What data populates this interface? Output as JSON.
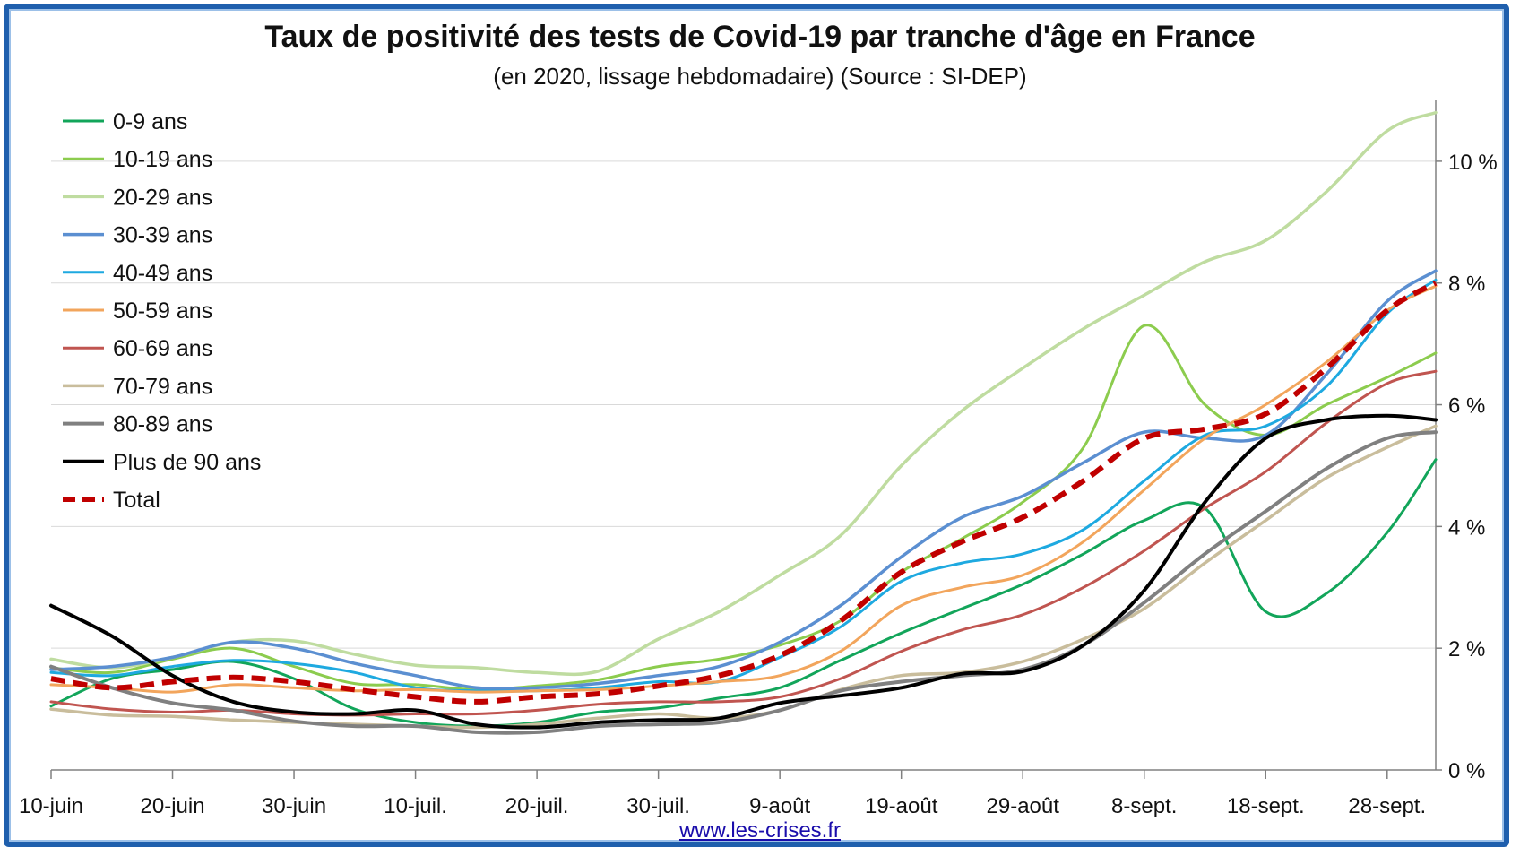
{
  "chart_data": {
    "type": "line",
    "title": "Taux de positivité des tests de Covid-19 par tranche d'âge en France",
    "subtitle": "(en 2020, lissage hebdomadaire) (Source : SI-DEP)",
    "xlabel": "",
    "ylabel": "",
    "x_ticks": [
      "10-juin",
      "20-juin",
      "30-juin",
      "10-juil.",
      "20-juil.",
      "30-juil.",
      "9-août",
      "19-août",
      "29-août",
      "8-sept.",
      "18-sept.",
      "28-sept."
    ],
    "y_ticks": [
      "0 %",
      "2 %",
      "4 %",
      "6 %",
      "8 %",
      "10 %"
    ],
    "ylim": [
      0,
      11
    ],
    "xlim": [
      0,
      114
    ],
    "grid": true,
    "legend_position": "top-left",
    "x_days": [
      0,
      5,
      10,
      15,
      20,
      25,
      30,
      35,
      40,
      45,
      50,
      55,
      60,
      65,
      70,
      75,
      80,
      85,
      90,
      95,
      100,
      105,
      110,
      114
    ],
    "series": [
      {
        "name": "0-9 ans",
        "color": "#12a55a",
        "dash": false,
        "width": 3,
        "values": [
          1.05,
          1.5,
          1.65,
          1.78,
          1.5,
          1.0,
          0.78,
          0.72,
          0.78,
          0.95,
          1.02,
          1.18,
          1.35,
          1.8,
          2.25,
          2.65,
          3.05,
          3.55,
          4.1,
          4.3,
          2.6,
          2.9,
          3.9,
          5.1
        ]
      },
      {
        "name": "10-19 ans",
        "color": "#8ccc4e",
        "dash": false,
        "width": 3,
        "values": [
          1.68,
          1.6,
          1.82,
          2.0,
          1.7,
          1.42,
          1.4,
          1.32,
          1.38,
          1.48,
          1.7,
          1.82,
          2.05,
          2.45,
          3.25,
          3.8,
          4.4,
          5.3,
          7.3,
          6.0,
          5.5,
          6.0,
          6.45,
          6.85
        ]
      },
      {
        "name": "20-29 ans",
        "color": "#bfdca0",
        "dash": false,
        "width": 3.5,
        "values": [
          1.82,
          1.68,
          1.85,
          2.1,
          2.12,
          1.9,
          1.72,
          1.68,
          1.6,
          1.62,
          2.15,
          2.6,
          3.2,
          3.85,
          5.0,
          5.9,
          6.6,
          7.25,
          7.8,
          8.35,
          8.7,
          9.5,
          10.5,
          10.8
        ]
      },
      {
        "name": "30-39 ans",
        "color": "#5b8fd1",
        "dash": false,
        "width": 3.5,
        "values": [
          1.65,
          1.7,
          1.85,
          2.1,
          2.0,
          1.75,
          1.55,
          1.35,
          1.35,
          1.42,
          1.55,
          1.7,
          2.1,
          2.7,
          3.5,
          4.15,
          4.5,
          5.05,
          5.55,
          5.45,
          5.5,
          6.5,
          7.7,
          8.2
        ]
      },
      {
        "name": "40-49 ans",
        "color": "#1ea9e0",
        "dash": false,
        "width": 3,
        "values": [
          1.6,
          1.55,
          1.7,
          1.8,
          1.75,
          1.6,
          1.35,
          1.3,
          1.3,
          1.35,
          1.45,
          1.45,
          1.85,
          2.35,
          3.1,
          3.4,
          3.55,
          3.95,
          4.75,
          5.5,
          5.65,
          6.3,
          7.5,
          8.05
        ]
      },
      {
        "name": "50-59 ans",
        "color": "#f2a55c",
        "dash": false,
        "width": 3,
        "values": [
          1.4,
          1.35,
          1.28,
          1.4,
          1.35,
          1.3,
          1.32,
          1.28,
          1.3,
          1.32,
          1.38,
          1.45,
          1.55,
          1.95,
          2.7,
          3.0,
          3.2,
          3.75,
          4.6,
          5.45,
          6.0,
          6.7,
          7.55,
          7.95
        ]
      },
      {
        "name": "60-69 ans",
        "color": "#c05550",
        "dash": false,
        "width": 3,
        "values": [
          1.12,
          1.0,
          0.95,
          0.98,
          0.92,
          0.9,
          0.92,
          0.92,
          0.98,
          1.08,
          1.12,
          1.12,
          1.2,
          1.5,
          1.95,
          2.3,
          2.55,
          3.0,
          3.6,
          4.3,
          4.9,
          5.7,
          6.35,
          6.55
        ]
      },
      {
        "name": "70-79 ans",
        "color": "#c9bd9c",
        "dash": false,
        "width": 3.5,
        "values": [
          1.0,
          0.9,
          0.88,
          0.82,
          0.78,
          0.75,
          0.72,
          0.7,
          0.75,
          0.85,
          0.92,
          0.85,
          0.98,
          1.32,
          1.55,
          1.6,
          1.78,
          2.15,
          2.65,
          3.4,
          4.1,
          4.8,
          5.3,
          5.65
        ]
      },
      {
        "name": "80-89 ans",
        "color": "#808080",
        "dash": false,
        "width": 4,
        "values": [
          1.7,
          1.35,
          1.1,
          0.98,
          0.8,
          0.72,
          0.72,
          0.62,
          0.62,
          0.72,
          0.75,
          0.78,
          0.98,
          1.3,
          1.45,
          1.55,
          1.65,
          2.05,
          2.75,
          3.55,
          4.25,
          4.95,
          5.45,
          5.55
        ]
      },
      {
        "name": "Plus de 90 ans",
        "color": "#000000",
        "dash": false,
        "width": 4,
        "values": [
          2.7,
          2.2,
          1.55,
          1.12,
          0.95,
          0.92,
          0.98,
          0.75,
          0.7,
          0.78,
          0.82,
          0.85,
          1.1,
          1.22,
          1.35,
          1.58,
          1.62,
          2.05,
          2.95,
          4.4,
          5.45,
          5.75,
          5.82,
          5.75
        ]
      },
      {
        "name": "Total",
        "color": "#c00000",
        "dash": true,
        "width": 6,
        "values": [
          1.5,
          1.35,
          1.45,
          1.52,
          1.45,
          1.32,
          1.2,
          1.12,
          1.2,
          1.25,
          1.38,
          1.55,
          1.88,
          2.45,
          3.25,
          3.75,
          4.15,
          4.75,
          5.45,
          5.6,
          5.85,
          6.6,
          7.55,
          8.0
        ]
      }
    ]
  },
  "footer": {
    "source_link": "www.les-crises.fr"
  }
}
